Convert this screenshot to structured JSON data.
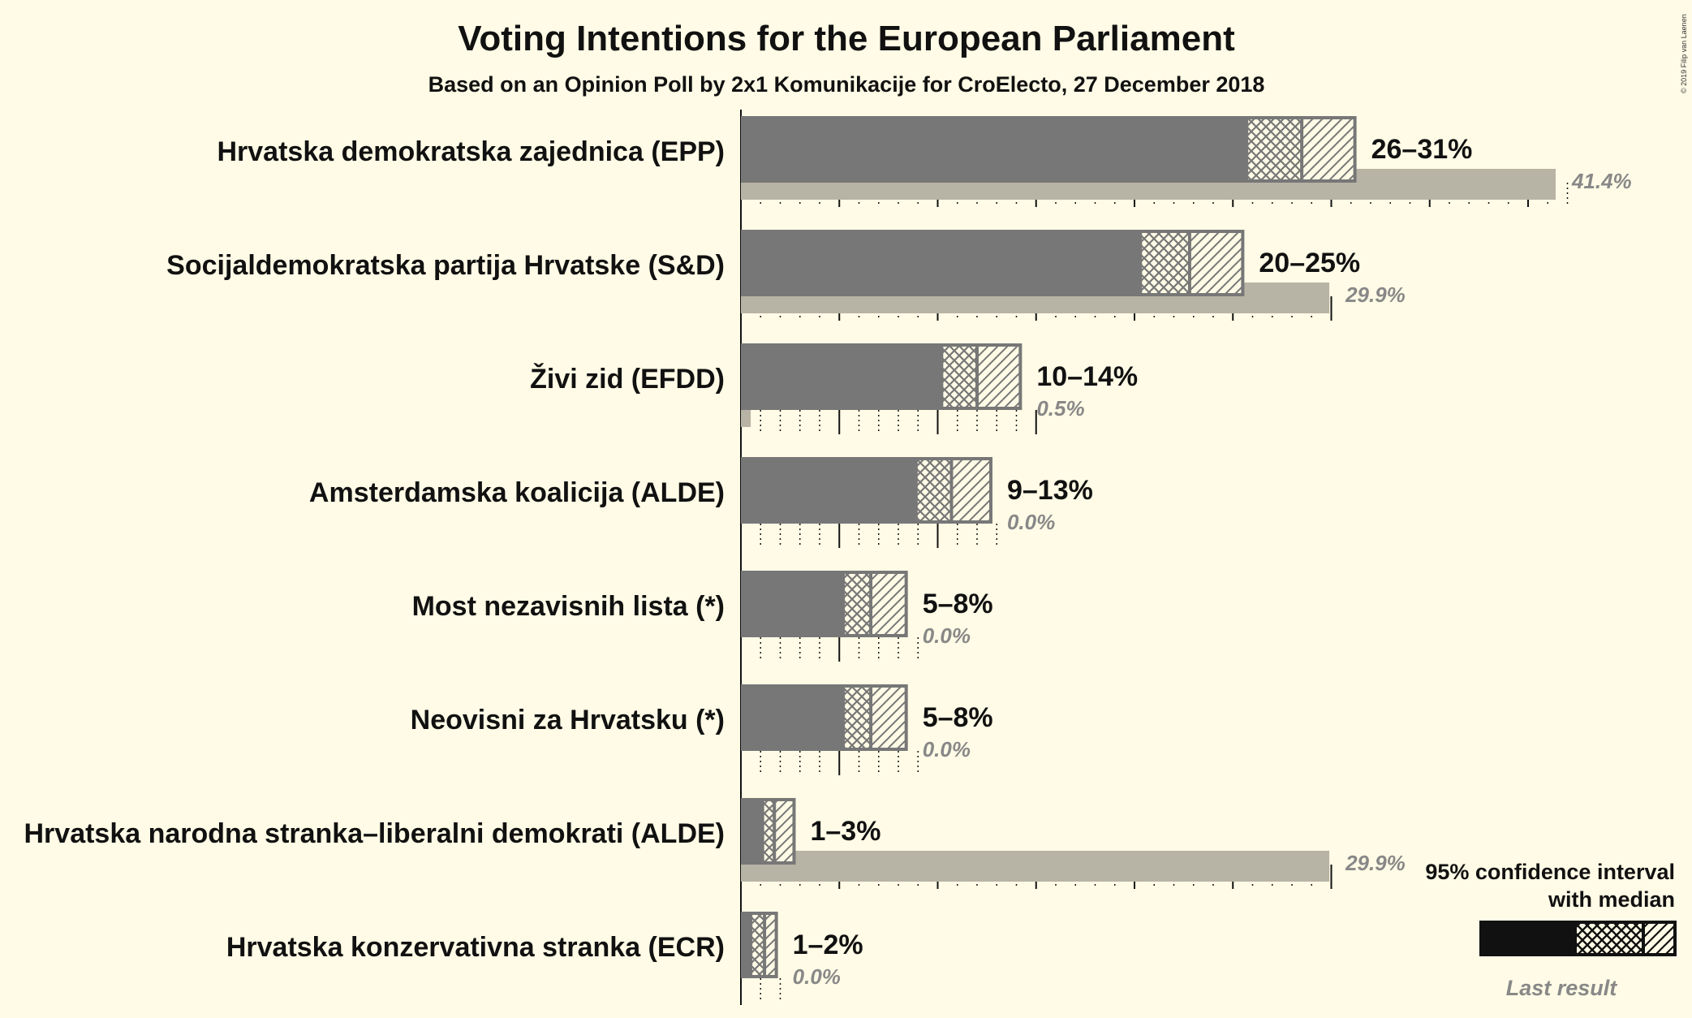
{
  "chart_data": {
    "type": "bar",
    "title": "Voting Intentions for the European Parliament",
    "subtitle": "Based on an Opinion Poll by 2x1 Komunikacije for CroElecto, 27 December 2018",
    "copyright": "© 2019 Filip van Laenen",
    "parties": [
      {
        "name": "Hrvatska demokratska zajednica (EPP)",
        "low": 26,
        "median": 28.5,
        "high": 31,
        "ci_low": 25.7,
        "ci_high": 31.2,
        "range_label": "26–31%",
        "last": 41.4,
        "last_label": "41.4%"
      },
      {
        "name": "Socijaldemokratska partija Hrvatske (S&D)",
        "low": 20,
        "median": 22.8,
        "high": 25,
        "ci_low": 20.3,
        "ci_high": 25.5,
        "range_label": "20–25%",
        "last": 29.9,
        "last_label": "29.9%"
      },
      {
        "name": "Živi zid (EFDD)",
        "low": 10,
        "median": 12,
        "high": 14,
        "ci_low": 10.2,
        "ci_high": 14.2,
        "range_label": "10–14%",
        "last": 0.5,
        "last_label": "0.5%"
      },
      {
        "name": "Amsterdamska koalicija (ALDE)",
        "low": 9,
        "median": 10.7,
        "high": 13,
        "ci_low": 8.9,
        "ci_high": 12.7,
        "range_label": "9–13%",
        "last": 0.0,
        "last_label": "0.0%"
      },
      {
        "name": "Most nezavisnih lista (*)",
        "low": 5,
        "median": 6.6,
        "high": 8,
        "ci_low": 5.2,
        "ci_high": 8.4,
        "range_label": "5–8%",
        "last": 0.0,
        "last_label": "0.0%"
      },
      {
        "name": "Neovisni za Hrvatsku (*)",
        "low": 5,
        "median": 6.6,
        "high": 8,
        "ci_low": 5.2,
        "ci_high": 8.4,
        "range_label": "5–8%",
        "last": 0.0,
        "last_label": "0.0%"
      },
      {
        "name": "Hrvatska narodna stranka–liberalni demokrati (ALDE)",
        "low": 1,
        "median": 1.7,
        "high": 3,
        "ci_low": 1.1,
        "ci_high": 2.7,
        "range_label": "1–3%",
        "last": 29.9,
        "last_label": "29.9%"
      },
      {
        "name": "Hrvatska konzervativna stranka (ECR)",
        "low": 1,
        "median": 1.2,
        "high": 2,
        "ci_low": 0.5,
        "ci_high": 1.8,
        "range_label": "1–2%",
        "last": 0.0,
        "last_label": "0.0%"
      }
    ],
    "xlim": [
      0,
      45
    ],
    "grid": true,
    "legend": {
      "title_line1": "95% confidence interval",
      "title_line2": "with median",
      "last_result": "Last result",
      "position": "bottom-right"
    },
    "colors": {
      "background": "#fffbe6",
      "bar": "#777777",
      "bar_border": "#777777",
      "last_result": "#b7b3a5",
      "hatch": "#777777",
      "legend_bar": "#111111",
      "legend_last": "#888888"
    }
  }
}
